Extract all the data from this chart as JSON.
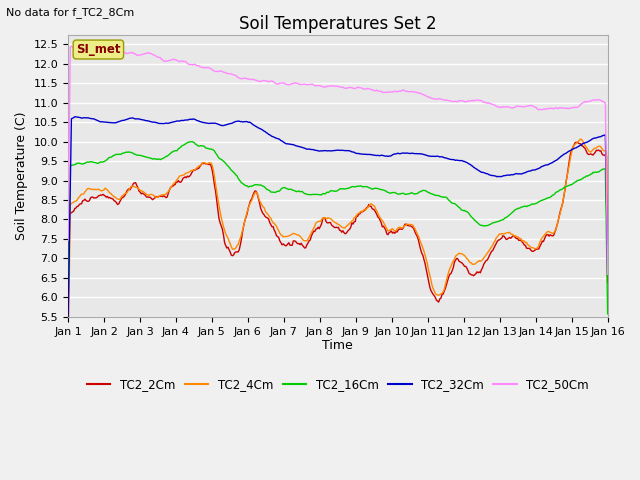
{
  "title": "Soil Temperatures Set 2",
  "top_left_text": "No data for f_TC2_8Cm",
  "ylabel": "Soil Temperature (C)",
  "xlabel": "Time",
  "ylim": [
    5.5,
    12.75
  ],
  "yticks": [
    5.5,
    6.0,
    6.5,
    7.0,
    7.5,
    8.0,
    8.5,
    9.0,
    9.5,
    10.0,
    10.5,
    11.0,
    11.5,
    12.0,
    12.5
  ],
  "xtick_labels": [
    "Jan 1",
    "Jan 2",
    "Jan 3",
    "Jan 4",
    "Jan 5",
    "Jan 6",
    "Jan 7",
    "Jan 8",
    "Jan 9",
    "Jan 10",
    "Jan 11",
    "Jan 12",
    "Jan 13",
    "Jan 14",
    "Jan 15",
    "Jan 16"
  ],
  "legend_label_box": "SI_met",
  "series_colors": {
    "TC2_2Cm": "#cc0000",
    "TC2_4Cm": "#ff8800",
    "TC2_16Cm": "#00cc00",
    "TC2_32Cm": "#0000cc",
    "TC2_50Cm": "#ff88ff"
  },
  "fig_bg_color": "#f0f0f0",
  "axes_bg_color": "#e8e8e8",
  "grid_color": "#ffffff",
  "title_fontsize": 12,
  "label_fontsize": 9,
  "tick_fontsize": 8
}
